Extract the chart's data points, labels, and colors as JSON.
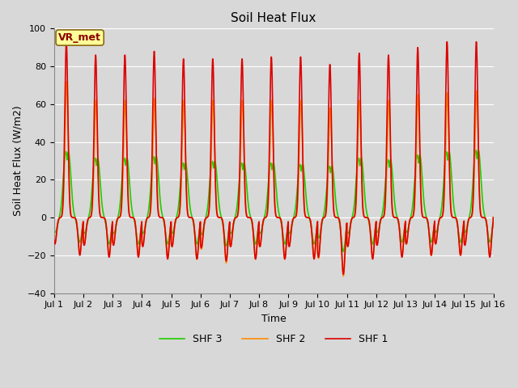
{
  "title": "Soil Heat Flux",
  "xlabel": "Time",
  "ylabel": "Soil Heat Flux (W/m2)",
  "legend_label": "VR_met",
  "series_labels": [
    "SHF 1",
    "SHF 2",
    "SHF 3"
  ],
  "series_colors": [
    "#dd0000",
    "#ff8c00",
    "#22cc00"
  ],
  "series_linewidths": [
    1.2,
    1.2,
    1.2
  ],
  "xlim_start": 0,
  "xlim_end": 15,
  "ylim": [
    -40,
    100
  ],
  "yticks": [
    -40,
    -20,
    0,
    20,
    40,
    60,
    80,
    100
  ],
  "xtick_labels": [
    "Jul 1",
    "Jul 2",
    "Jul 3",
    "Jul 4",
    "Jul 5",
    "Jul 6",
    "Jul 7",
    "Jul 8",
    "Jul 9",
    "Jul 10",
    "Jul 11",
    "Jul 12",
    "Jul 13",
    "Jul 14",
    "Jul 15",
    "Jul 16"
  ],
  "bg_color": "#d8d8d8",
  "grid_color": "#ffffff",
  "title_fontsize": 11,
  "axis_label_fontsize": 9,
  "tick_fontsize": 8,
  "legend_fontsize": 9,
  "amp1": [
    93,
    86,
    86,
    88,
    84,
    84,
    84,
    85,
    85,
    81,
    87,
    86,
    90,
    93,
    93
  ],
  "amp2": [
    72,
    62,
    62,
    63,
    62,
    62,
    62,
    62,
    62,
    58,
    62,
    62,
    65,
    66,
    67
  ],
  "amp3": [
    41,
    37,
    37,
    38,
    34,
    35,
    34,
    34,
    33,
    32,
    37,
    36,
    39,
    41,
    42
  ],
  "night_amp1": [
    20,
    21,
    21,
    22,
    22,
    23,
    22,
    22,
    22,
    30,
    22,
    21,
    20,
    20,
    21
  ],
  "night_amp2": [
    19,
    20,
    20,
    21,
    22,
    24,
    22,
    22,
    21,
    31,
    21,
    20,
    20,
    20,
    20
  ],
  "night_amp3": [
    13,
    14,
    14,
    14,
    14,
    15,
    14,
    14,
    14,
    18,
    14,
    13,
    13,
    13,
    13
  ]
}
